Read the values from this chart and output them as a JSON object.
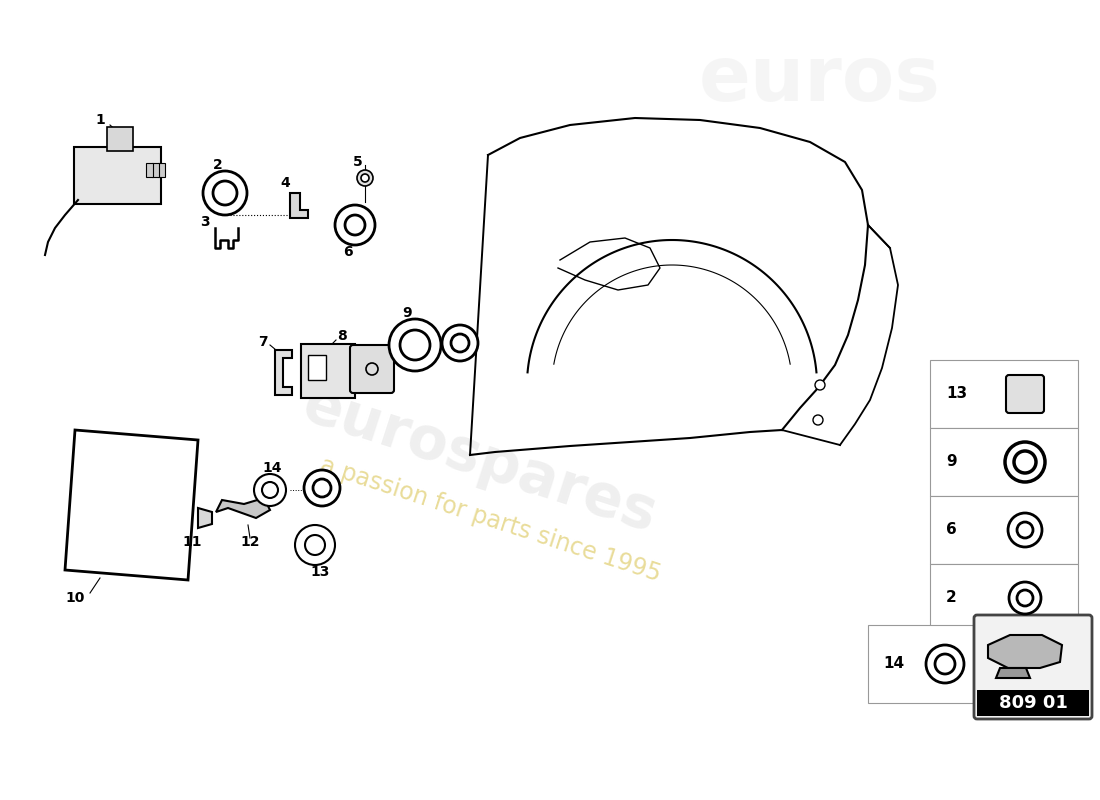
{
  "bg_color": "#ffffff",
  "part_number_label": "809 01",
  "watermark1": "eurospares",
  "watermark2": "a passion for parts since 1995",
  "sidebar_parts": [
    {
      "num": "13",
      "type": "rounded_square"
    },
    {
      "num": "9",
      "type": "ring_thick"
    },
    {
      "num": "6",
      "type": "ring_hex"
    },
    {
      "num": "2",
      "type": "ring_thin"
    }
  ]
}
